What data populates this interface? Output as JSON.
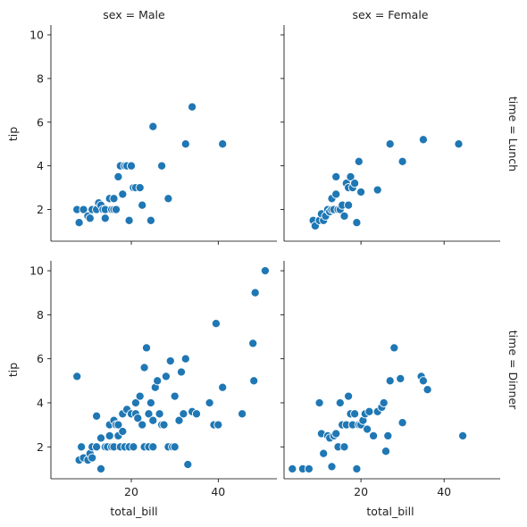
{
  "chart_data": {
    "type": "scatter",
    "facet_grid": {
      "col_labels": [
        "sex = Male",
        "sex = Female"
      ],
      "row_labels": [
        "time = Lunch",
        "time = Dinner"
      ]
    },
    "xlabel": "total_bill",
    "ylabel": "tip",
    "xlim": [
      1.5,
      53.5
    ],
    "ylim": [
      0.55,
      10.45
    ],
    "xticks": [
      20,
      40
    ],
    "yticks": [
      2,
      4,
      6,
      8,
      10
    ],
    "grid": false,
    "point_color": "#1f77b4",
    "panels": [
      {
        "row": "Lunch",
        "col": "Male",
        "x": [
          7.5,
          8,
          9,
          10,
          10.5,
          11,
          12,
          12.5,
          13,
          13.5,
          14,
          14,
          15,
          15.5,
          16,
          16,
          16.5,
          17,
          17.5,
          18,
          18.5,
          19,
          19.5,
          20,
          20.5,
          21,
          22,
          22.5,
          24.5,
          25,
          27,
          28.5,
          32.5,
          34,
          41
        ],
        "y": [
          2.0,
          1.4,
          2.0,
          1.7,
          1.6,
          2.0,
          2.0,
          2.3,
          2.2,
          2.0,
          1.6,
          2.0,
          2.5,
          2.0,
          2.0,
          2.5,
          2.0,
          3.5,
          4.0,
          2.7,
          4.0,
          4.0,
          1.5,
          4.0,
          3.0,
          3.0,
          3.0,
          2.2,
          1.5,
          5.8,
          4.0,
          2.5,
          5.0,
          6.7,
          5.0
        ]
      },
      {
        "row": "Lunch",
        "col": "Female",
        "x": [
          8.5,
          9,
          10,
          10.5,
          11,
          11.5,
          12,
          12.5,
          13,
          13,
          13.5,
          14,
          14,
          14.5,
          15,
          15.5,
          16,
          16.5,
          17,
          17,
          17.5,
          18,
          18.5,
          19,
          19.5,
          20,
          24,
          27,
          30,
          35,
          43.5
        ],
        "y": [
          1.5,
          1.25,
          1.5,
          1.8,
          1.5,
          1.7,
          2.0,
          1.9,
          2.0,
          2.5,
          2.0,
          3.5,
          2.7,
          2.0,
          2.0,
          2.2,
          1.7,
          3.2,
          3.0,
          2.2,
          3.5,
          3.0,
          3.2,
          1.4,
          4.2,
          2.8,
          2.9,
          5.0,
          4.2,
          5.2,
          5.0
        ]
      },
      {
        "row": "Dinner",
        "col": "Male",
        "x": [
          7.5,
          8,
          8.5,
          9,
          10,
          10.5,
          11,
          11,
          12,
          12,
          13,
          13,
          14,
          14.5,
          15,
          15,
          15.5,
          16,
          16,
          16.5,
          17,
          17,
          17.5,
          18,
          18,
          18.5,
          19,
          19.5,
          20,
          20.5,
          21,
          21,
          21.5,
          22,
          22.5,
          23,
          23,
          23.5,
          24,
          24,
          24.5,
          25,
          25,
          25.5,
          26,
          26.5,
          27,
          27.5,
          28,
          28.5,
          29,
          29.5,
          30,
          30,
          31,
          31.5,
          32,
          32.5,
          33,
          34,
          35,
          38,
          39,
          39.5,
          40,
          41,
          45.5,
          48,
          48.2,
          48.5,
          50.8
        ],
        "y": [
          5.2,
          1.4,
          2.0,
          1.5,
          1.4,
          1.7,
          1.5,
          2.0,
          2.0,
          3.4,
          1.0,
          2.4,
          2.0,
          2.0,
          3.0,
          2.5,
          2.0,
          3.2,
          2.0,
          3.0,
          2.5,
          3.0,
          2.0,
          3.5,
          2.7,
          2.0,
          3.7,
          2.0,
          3.5,
          2.0,
          3.5,
          4.0,
          3.3,
          4.3,
          3.0,
          2.0,
          5.6,
          6.5,
          3.5,
          2.0,
          4.0,
          2.0,
          3.2,
          4.7,
          5.0,
          3.5,
          3.0,
          3.0,
          5.2,
          2.0,
          5.9,
          2.0,
          2.0,
          4.3,
          3.2,
          5.4,
          3.5,
          6.0,
          1.2,
          3.6,
          3.5,
          4.0,
          3.0,
          7.6,
          3.0,
          4.7,
          3.5,
          6.7,
          5.0,
          9.0,
          10.0
        ]
      },
      {
        "row": "Dinner",
        "col": "Female",
        "x": [
          3.5,
          6,
          7.5,
          10,
          10.5,
          11,
          12,
          12.5,
          13,
          13.5,
          14,
          14.5,
          15,
          15.5,
          16,
          16.5,
          17,
          17.5,
          18,
          18.5,
          19,
          19.5,
          20,
          20.5,
          21,
          21.5,
          22,
          23,
          24,
          25,
          25.5,
          26,
          26.5,
          27,
          28,
          29.5,
          30,
          34.5,
          35,
          36,
          44.5
        ],
        "y": [
          1.0,
          1.0,
          1.0,
          4.0,
          2.6,
          1.7,
          2.5,
          2.4,
          1.1,
          2.5,
          2.6,
          2.0,
          4.0,
          3.0,
          2.0,
          3.0,
          4.3,
          3.5,
          3.0,
          3.5,
          1.0,
          3.0,
          3.0,
          3.2,
          3.5,
          2.8,
          3.6,
          2.5,
          3.6,
          3.8,
          4.0,
          1.8,
          2.5,
          5.0,
          6.5,
          5.1,
          3.1,
          5.2,
          5.0,
          4.6,
          2.5
        ]
      }
    ]
  }
}
